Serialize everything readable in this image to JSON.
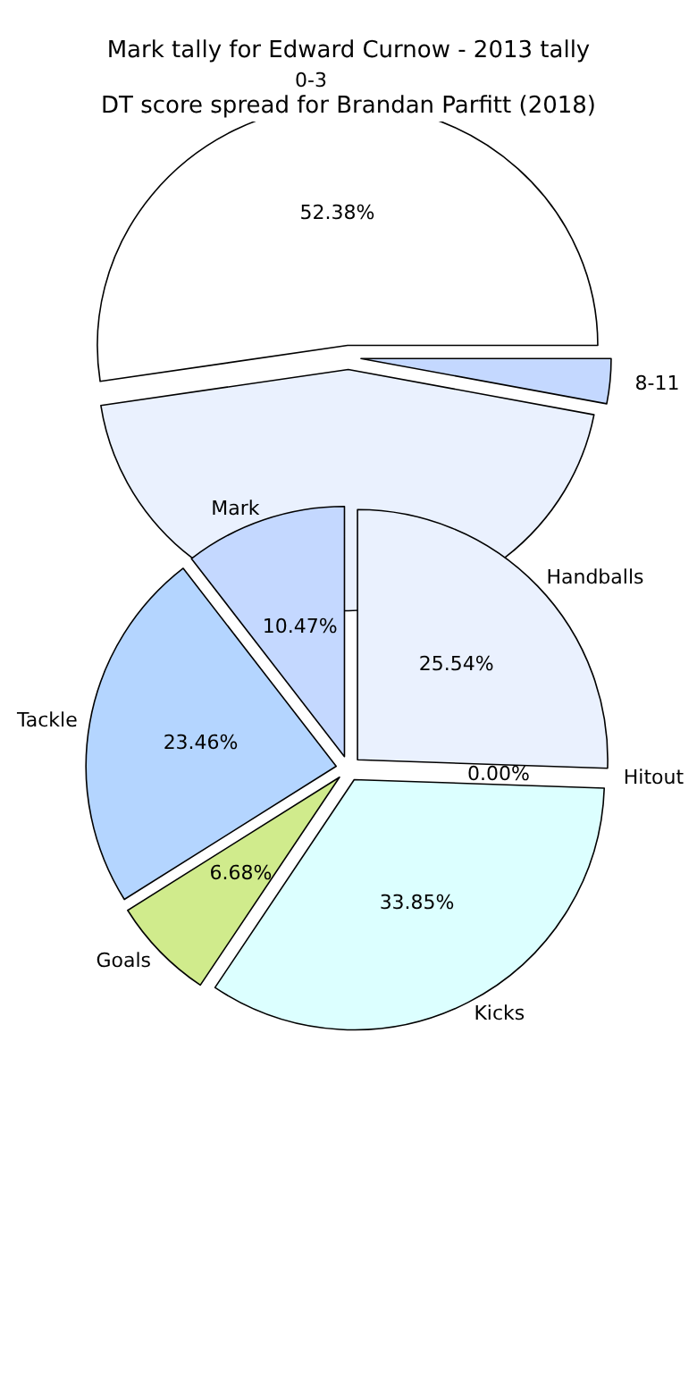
{
  "chart_data": [
    {
      "type": "pie",
      "title": "Mark tally for Edward Curnow - 2013 tally",
      "categories": [
        "0-3",
        null,
        "8-11"
      ],
      "values": [
        52.38,
        44.62,
        3
      ],
      "colors": [
        "#ffffff",
        "#eaf1fe",
        "#c4d8ff"
      ],
      "value_labels": [
        "52.38%",
        null,
        null
      ],
      "legend": false
    },
    {
      "type": "pie",
      "title": "DT score spread for Brandan Parfitt (2018)",
      "categories": [
        "Handballs",
        "Hitout",
        "Kicks",
        "Goals",
        "Tackle",
        "Mark"
      ],
      "values": [
        25.54,
        0.0,
        33.85,
        6.68,
        23.46,
        10.47
      ],
      "colors": [
        "#eaf1fe",
        "#e6e6fa",
        "#dcffff",
        "#d0eb8c",
        "#b4d5ff",
        "#c4d8ff"
      ],
      "value_labels": [
        "25.54%",
        "0.00%",
        "33.85%",
        "6.68%",
        "23.46%",
        "10.47%"
      ],
      "legend": false
    }
  ]
}
